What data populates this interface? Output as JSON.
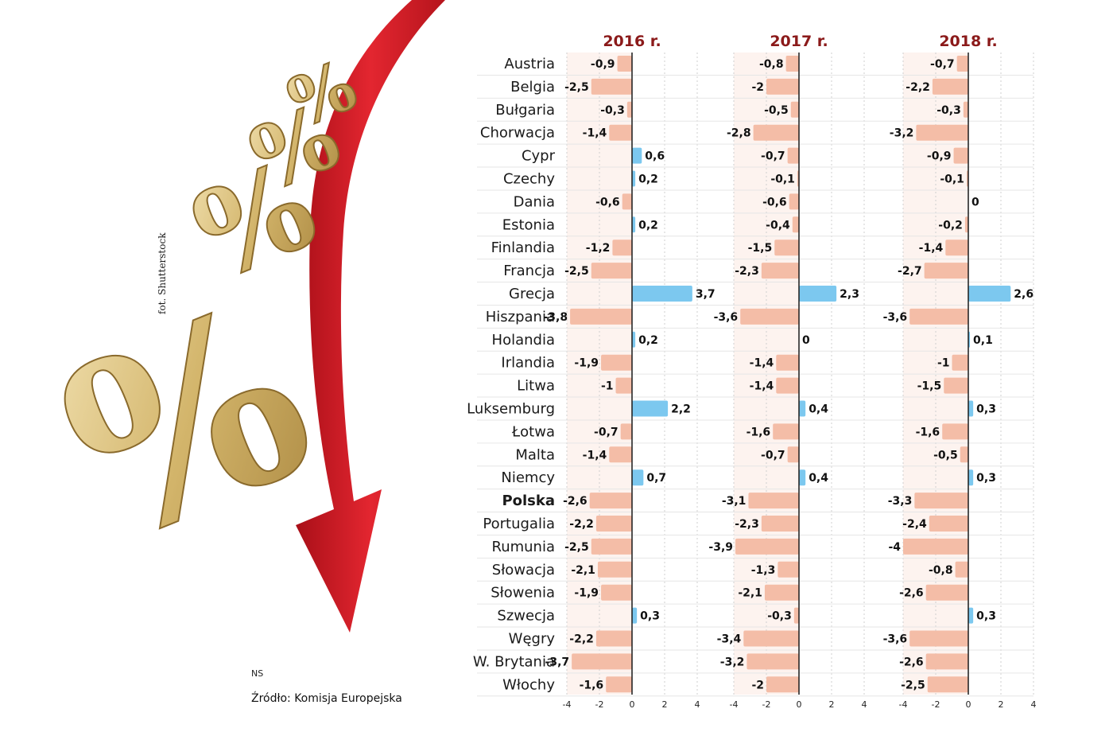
{
  "credit": "fot. Shutterstock",
  "ns": "NS",
  "source": "Źródło: Komisja Europejska",
  "colors": {
    "positive": "#7cc8ef",
    "negative": "#f4bda7",
    "highlight": "#8b1a1a",
    "arrow": "#d4202c",
    "gold": "#d9bf7a"
  },
  "decor": {
    "glyphs": [
      "%",
      "%",
      "%",
      "%"
    ]
  },
  "chart_data": {
    "type": "bar",
    "orientation": "horizontal",
    "highlight_category": "Polska",
    "xlim": [
      -4,
      4
    ],
    "xticks": [
      "-4",
      "-2",
      "0",
      "2",
      "4"
    ],
    "categories": [
      "Austria",
      "Belgia",
      "Bułgaria",
      "Chorwacja",
      "Cypr",
      "Czechy",
      "Dania",
      "Estonia",
      "Finlandia",
      "Francja",
      "Grecja",
      "Hiszpania",
      "Holandia",
      "Irlandia",
      "Litwa",
      "Luksemburg",
      "Łotwa",
      "Malta",
      "Niemcy",
      "Polska",
      "Portugalia",
      "Rumunia",
      "Słowacja",
      "Słowenia",
      "Szwecja",
      "Węgry",
      "W. Brytania",
      "Włochy"
    ],
    "series": [
      {
        "name": "2016 r.",
        "values": [
          -0.9,
          -2.5,
          -0.3,
          -1.4,
          0.6,
          0.2,
          -0.6,
          0.2,
          -1.2,
          -2.5,
          3.7,
          -3.8,
          0.2,
          -1.9,
          -1,
          2.2,
          -0.7,
          -1.4,
          0.7,
          -2.6,
          -2.2,
          -2.5,
          -2.1,
          -1.9,
          0.3,
          -2.2,
          -3.7,
          -1.6
        ],
        "labels": [
          "-0,9",
          "-2,5",
          "-0,3",
          "-1,4",
          "0,6",
          "0,2",
          "-0,6",
          "0,2",
          "-1,2",
          "-2,5",
          "3,7",
          "-3,8",
          "0,2",
          "-1,9",
          "-1",
          "2,2",
          "-0,7",
          "-1,4",
          "0,7",
          "-2,6",
          "-2,2",
          "-2,5",
          "-2,1",
          "-1,9",
          "0,3",
          "-2,2",
          "-3,7",
          "-1,6"
        ]
      },
      {
        "name": "2017 r.",
        "values": [
          -0.8,
          -2,
          -0.5,
          -2.8,
          -0.7,
          -0.1,
          -0.6,
          -0.4,
          -1.5,
          -2.3,
          2.3,
          -3.6,
          0,
          -1.4,
          -1.4,
          0.4,
          -1.6,
          -0.7,
          0.4,
          -3.1,
          -2.3,
          -3.9,
          -1.3,
          -2.1,
          -0.3,
          -3.4,
          -3.2,
          -2
        ],
        "labels": [
          "-0,8",
          "-2",
          "-0,5",
          "-2,8",
          "-0,7",
          "-0,1",
          "-0,6",
          "-0,4",
          "-1,5",
          "-2,3",
          "2,3",
          "-3,6",
          "0",
          "-1,4",
          "-1,4",
          "0,4",
          "-1,6",
          "-0,7",
          "0,4",
          "-3,1",
          "-2,3",
          "-3,9",
          "-1,3",
          "-2,1",
          "-0,3",
          "-3,4",
          "-3,2",
          "-2"
        ]
      },
      {
        "name": "2018 r.",
        "values": [
          -0.7,
          -2.2,
          -0.3,
          -3.2,
          -0.9,
          -0.1,
          0,
          -0.2,
          -1.4,
          -2.7,
          2.6,
          -3.6,
          0.1,
          -1,
          -1.5,
          0.3,
          -1.6,
          -0.5,
          0.3,
          -3.3,
          -2.4,
          -4,
          -0.8,
          -2.6,
          0.3,
          -3.6,
          -2.6,
          -2.5
        ],
        "labels": [
          "-0,7",
          "-2,2",
          "-0,3",
          "-3,2",
          "-0,9",
          "-0,1",
          "0",
          "-0,2",
          "-1,4",
          "-2,7",
          "2,6",
          "-3,6",
          "0,1",
          "-1",
          "-1,5",
          "0,3",
          "-1,6",
          "-0,5",
          "0,3",
          "-3,3",
          "-2,4",
          "-4",
          "-0,8",
          "-2,6",
          "0,3",
          "-3,6",
          "-2,6",
          "-2,5"
        ]
      }
    ]
  }
}
